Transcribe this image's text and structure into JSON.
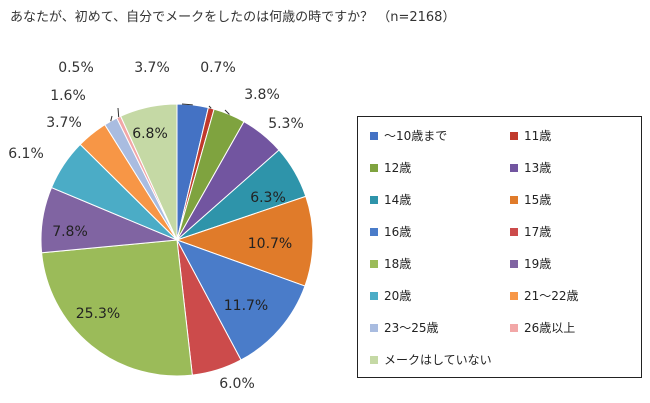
{
  "chart_data": {
    "type": "pie",
    "title": "あなたが、初めて、自分でメークをしたのは何歳の時ですか？ （n=2168）",
    "slices": [
      {
        "label": "～10歳まで",
        "value": 3.7,
        "value_label": "3.7%",
        "color": "#4472C4"
      },
      {
        "label": "11歳",
        "value": 0.7,
        "value_label": "0.7%",
        "color": "#C0392B"
      },
      {
        "label": "12歳",
        "value": 3.8,
        "value_label": "3.8%",
        "color": "#7FA33F"
      },
      {
        "label": "13歳",
        "value": 5.3,
        "value_label": "5.3%",
        "color": "#7255A0"
      },
      {
        "label": "14歳",
        "value": 6.3,
        "value_label": "6.3%",
        "color": "#2E94AA"
      },
      {
        "label": "15歳",
        "value": 10.7,
        "value_label": "10.7%",
        "color": "#E07B2A"
      },
      {
        "label": "16歳",
        "value": 11.7,
        "value_label": "11.7%",
        "color": "#4A7CC9"
      },
      {
        "label": "17歳",
        "value": 6.0,
        "value_label": "6.0%",
        "color": "#CC4B4B"
      },
      {
        "label": "18歳",
        "value": 25.3,
        "value_label": "25.3%",
        "color": "#9BBB59"
      },
      {
        "label": "19歳",
        "value": 7.8,
        "value_label": "7.8%",
        "color": "#8064A2"
      },
      {
        "label": "20歳",
        "value": 6.1,
        "value_label": "6.1%",
        "color": "#4BACC6"
      },
      {
        "label": "21～22歳",
        "value": 3.7,
        "value_label": "3.7%",
        "color": "#F79646"
      },
      {
        "label": "23～25歳",
        "value": 1.6,
        "value_label": "1.6%",
        "color": "#A9BCE0"
      },
      {
        "label": "26歳以上",
        "value": 0.5,
        "value_label": "0.5%",
        "color": "#F2A7A7"
      },
      {
        "label": "メークはしていない",
        "value": 6.8,
        "value_label": "6.8%",
        "color": "#C5D9A5"
      }
    ],
    "legend_position": "right"
  }
}
